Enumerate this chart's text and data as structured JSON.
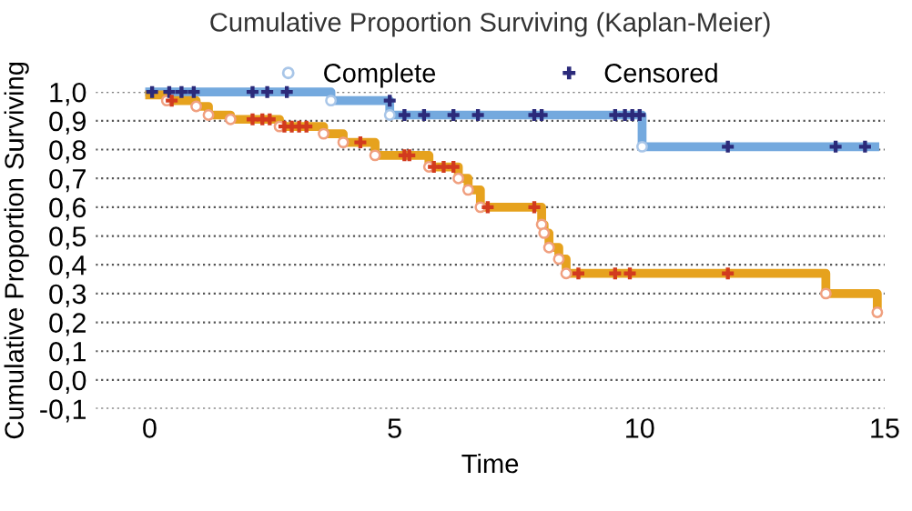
{
  "chart_data": {
    "type": "step",
    "title": "Cumulative Proportion Surviving (Kaplan-Meier)",
    "xlabel": "Time",
    "ylabel": "Cumulative Proportion Surviving",
    "series": [
      {
        "color": "#74a9de",
        "x": [
          0,
          3.7,
          4.9,
          10.05,
          14.8
        ],
        "values": [
          1.0,
          0.97,
          0.92,
          0.81,
          0.81
        ]
      },
      {
        "color": "#e6a21e",
        "x": [
          0,
          0.35,
          0.95,
          1.2,
          1.65,
          2.65,
          3.55,
          3.95,
          4.6,
          5.7,
          6.3,
          6.5,
          6.75,
          8.0,
          8.05,
          8.15,
          8.35,
          8.5,
          13.8,
          14.85
        ],
        "values": [
          0.99,
          0.97,
          0.95,
          0.92,
          0.905,
          0.88,
          0.855,
          0.825,
          0.78,
          0.74,
          0.7,
          0.66,
          0.6,
          0.54,
          0.51,
          0.46,
          0.42,
          0.37,
          0.3,
          0.235
        ]
      },
      {
        "type": "scatter",
        "name": "Complete",
        "marker": "circle",
        "x": [
          3.7,
          4.9,
          10.05,
          0.35,
          0.95,
          1.2,
          1.65,
          2.65,
          3.55,
          3.95,
          4.6,
          5.7,
          6.3,
          6.5,
          6.75,
          8.0,
          8.05,
          8.15,
          8.35,
          8.5,
          13.8,
          14.85
        ],
        "values": [
          0.97,
          0.92,
          0.81,
          0.97,
          0.95,
          0.92,
          0.905,
          0.88,
          0.855,
          0.825,
          0.78,
          0.74,
          0.7,
          0.66,
          0.6,
          0.54,
          0.51,
          0.46,
          0.42,
          0.37,
          0.3,
          0.235
        ],
        "colors": [
          "#a9c6e8",
          "#a9c6e8",
          "#a9c6e8",
          "#f0a080",
          "#f0a080",
          "#f0a080",
          "#f0a080",
          "#f0a080",
          "#f0a080",
          "#f0a080",
          "#f0a080",
          "#f0a080",
          "#f0a080",
          "#f0a080",
          "#f0a080",
          "#f0a080",
          "#f0a080",
          "#f0a080",
          "#f0a080",
          "#f0a080",
          "#f0a080",
          "#f0a080"
        ]
      },
      {
        "type": "scatter",
        "name": "Censored",
        "marker": "cross",
        "x": [
          0.05,
          0.4,
          0.65,
          0.9,
          2.1,
          2.4,
          2.8,
          4.9,
          5.2,
          5.6,
          6.2,
          6.7,
          7.85,
          8.0,
          9.5,
          9.7,
          9.85,
          10.0,
          11.8,
          14.0,
          14.6,
          0.45,
          2.1,
          2.3,
          2.45,
          2.75,
          2.9,
          3.05,
          3.2,
          4.3,
          5.2,
          5.3,
          5.8,
          6.0,
          6.2,
          6.9,
          7.85,
          8.75,
          9.5,
          9.8,
          11.8
        ],
        "values": [
          1.0,
          1.0,
          1.0,
          1.0,
          1.0,
          1.0,
          1.0,
          0.97,
          0.92,
          0.92,
          0.92,
          0.92,
          0.92,
          0.92,
          0.92,
          0.92,
          0.92,
          0.92,
          0.81,
          0.81,
          0.81,
          0.97,
          0.905,
          0.905,
          0.905,
          0.88,
          0.88,
          0.88,
          0.88,
          0.825,
          0.78,
          0.78,
          0.74,
          0.74,
          0.74,
          0.6,
          0.6,
          0.37,
          0.37,
          0.37,
          0.37
        ],
        "colors": [
          "#2b2a7a",
          "#2b2a7a",
          "#2b2a7a",
          "#2b2a7a",
          "#2b2a7a",
          "#2b2a7a",
          "#2b2a7a",
          "#2b2a7a",
          "#2b2a7a",
          "#2b2a7a",
          "#2b2a7a",
          "#2b2a7a",
          "#2b2a7a",
          "#2b2a7a",
          "#2b2a7a",
          "#2b2a7a",
          "#2b2a7a",
          "#2b2a7a",
          "#2b2a7a",
          "#2b2a7a",
          "#2b2a7a",
          "#d23b1e",
          "#d23b1e",
          "#d23b1e",
          "#d23b1e",
          "#d23b1e",
          "#d23b1e",
          "#d23b1e",
          "#d23b1e",
          "#d23b1e",
          "#d23b1e",
          "#d23b1e",
          "#d23b1e",
          "#d23b1e",
          "#d23b1e",
          "#d23b1e",
          "#d23b1e",
          "#d23b1e",
          "#d23b1e",
          "#d23b1e",
          "#d23b1e"
        ]
      }
    ],
    "xlim": [
      -1.1,
      15
    ],
    "xticks": [
      0,
      5,
      10,
      15
    ],
    "ylim": [
      -0.1,
      1.0
    ],
    "yticks": [
      {
        "value": -0.1,
        "label": "-0,1"
      },
      {
        "value": 0.0,
        "label": "0,0"
      },
      {
        "value": 0.1,
        "label": "0,1"
      },
      {
        "value": 0.2,
        "label": "0,2"
      },
      {
        "value": 0.3,
        "label": "0,3"
      },
      {
        "value": 0.4,
        "label": "0,4"
      },
      {
        "value": 0.5,
        "label": "0,5"
      },
      {
        "value": 0.6,
        "label": "0,6"
      },
      {
        "value": 0.7,
        "label": "0,7"
      },
      {
        "value": 0.8,
        "label": "0,8"
      },
      {
        "value": 0.9,
        "label": "0,9"
      },
      {
        "value": 1.0,
        "label": "1,0"
      }
    ],
    "grid": "y",
    "legend": "top"
  }
}
